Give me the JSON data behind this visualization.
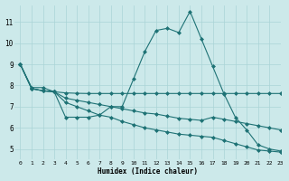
{
  "background_color": "#cce9ea",
  "grid_color": "#aad4d6",
  "line_color": "#1e7275",
  "xlabel": "Humidex (Indice chaleur)",
  "xlim": [
    -0.5,
    23
  ],
  "ylim": [
    4.5,
    11.8
  ],
  "yticks": [
    5,
    6,
    7,
    8,
    9,
    10,
    11
  ],
  "xticks": [
    0,
    1,
    2,
    3,
    4,
    5,
    6,
    7,
    8,
    9,
    10,
    11,
    12,
    13,
    14,
    15,
    16,
    17,
    18,
    19,
    20,
    21,
    22,
    23
  ],
  "series1_x": [
    0,
    1,
    2,
    3,
    4,
    5,
    6,
    7,
    8,
    9,
    10,
    11,
    12,
    13,
    14,
    15,
    16,
    17,
    18,
    19,
    20,
    21,
    22,
    23
  ],
  "series1_y": [
    9.0,
    7.9,
    7.9,
    7.7,
    6.5,
    6.5,
    6.5,
    6.6,
    7.0,
    7.0,
    8.3,
    9.6,
    10.6,
    10.7,
    10.5,
    11.5,
    10.2,
    8.9,
    7.6,
    6.5,
    5.9,
    5.2,
    5.0,
    4.9
  ],
  "series2_x": [
    0,
    1,
    2,
    3,
    4,
    5,
    6,
    7,
    8,
    9,
    10,
    11,
    12,
    13,
    14,
    15,
    16,
    17,
    18,
    19,
    20,
    21,
    22,
    23
  ],
  "series2_y": [
    9.0,
    7.85,
    7.75,
    7.7,
    7.65,
    7.63,
    7.62,
    7.62,
    7.62,
    7.62,
    7.62,
    7.62,
    7.62,
    7.62,
    7.62,
    7.62,
    7.62,
    7.62,
    7.62,
    7.62,
    7.62,
    7.62,
    7.62,
    7.62
  ],
  "series3_x": [
    0,
    1,
    2,
    3,
    4,
    5,
    6,
    7,
    8,
    9,
    10,
    11,
    12,
    13,
    14,
    15,
    16,
    17,
    18,
    19,
    20,
    21,
    22,
    23
  ],
  "series3_y": [
    9.0,
    7.85,
    7.75,
    7.7,
    7.4,
    7.3,
    7.2,
    7.1,
    7.0,
    6.9,
    6.8,
    6.7,
    6.65,
    6.55,
    6.45,
    6.4,
    6.35,
    6.5,
    6.4,
    6.3,
    6.2,
    6.1,
    6.0,
    5.9
  ],
  "series4_x": [
    0,
    1,
    2,
    3,
    4,
    5,
    6,
    7,
    8,
    9,
    10,
    11,
    12,
    13,
    14,
    15,
    16,
    17,
    18,
    19,
    20,
    21,
    22,
    23
  ],
  "series4_y": [
    9.0,
    7.85,
    7.75,
    7.7,
    7.2,
    7.0,
    6.8,
    6.6,
    6.5,
    6.3,
    6.15,
    6.0,
    5.9,
    5.8,
    5.7,
    5.65,
    5.6,
    5.55,
    5.4,
    5.25,
    5.1,
    4.95,
    4.9,
    4.85
  ]
}
